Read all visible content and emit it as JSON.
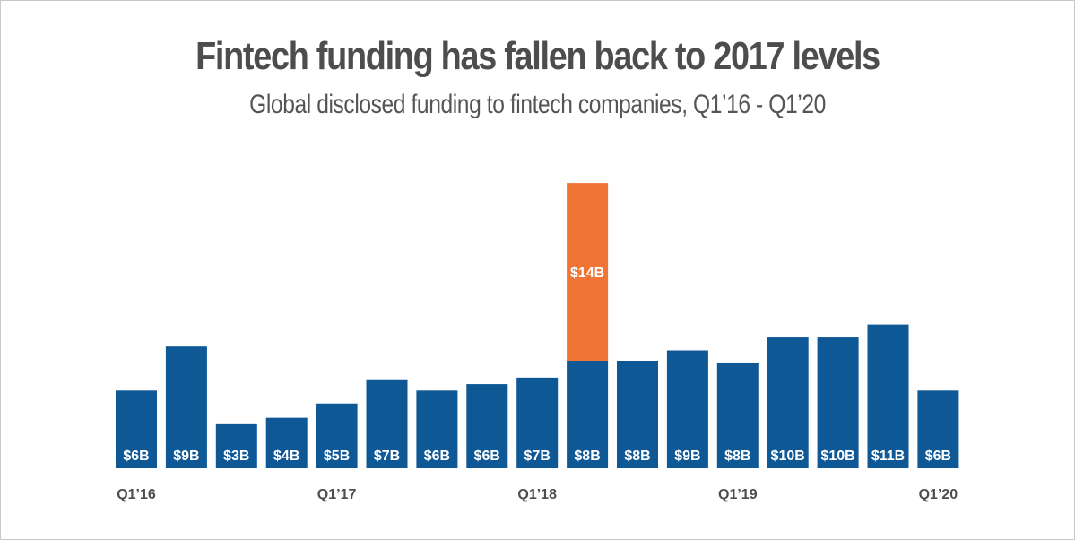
{
  "chart_data": {
    "type": "bar",
    "title": "Fintech funding has fallen back to 2017 levels",
    "subtitle": "Global disclosed funding to fintech companies, Q1’16 - Q1’20",
    "categories": [
      "Q1’16",
      "",
      "",
      "",
      "Q1’17",
      "",
      "",
      "",
      "Q1’18",
      "",
      "",
      "",
      "Q1’19",
      "",
      "",
      "",
      "Q1’20"
    ],
    "series": [
      {
        "values": [
          6,
          9,
          3,
          4,
          5,
          7,
          6,
          6,
          7,
          8,
          8,
          9,
          8,
          10,
          10,
          11,
          6
        ],
        "bar_heights": [
          6,
          9.4,
          3.4,
          3.9,
          5,
          6.8,
          6,
          6.5,
          7,
          8.3,
          8.3,
          9.1,
          8.1,
          10.1,
          10.1,
          11.1,
          6
        ],
        "labels": [
          "$6B",
          "$9B",
          "$3B",
          "$4B",
          "$5B",
          "$7B",
          "$6B",
          "$6B",
          "$7B",
          "$8B",
          "$8B",
          "$9B",
          "$8B",
          "$10B",
          "$10B",
          "$11B",
          "$6B"
        ],
        "color": "#0f5896"
      }
    ],
    "highlight": {
      "index": 9,
      "total": 22,
      "label": "$14B",
      "color": "#f07535"
    },
    "grid": false,
    "legend": "none"
  }
}
